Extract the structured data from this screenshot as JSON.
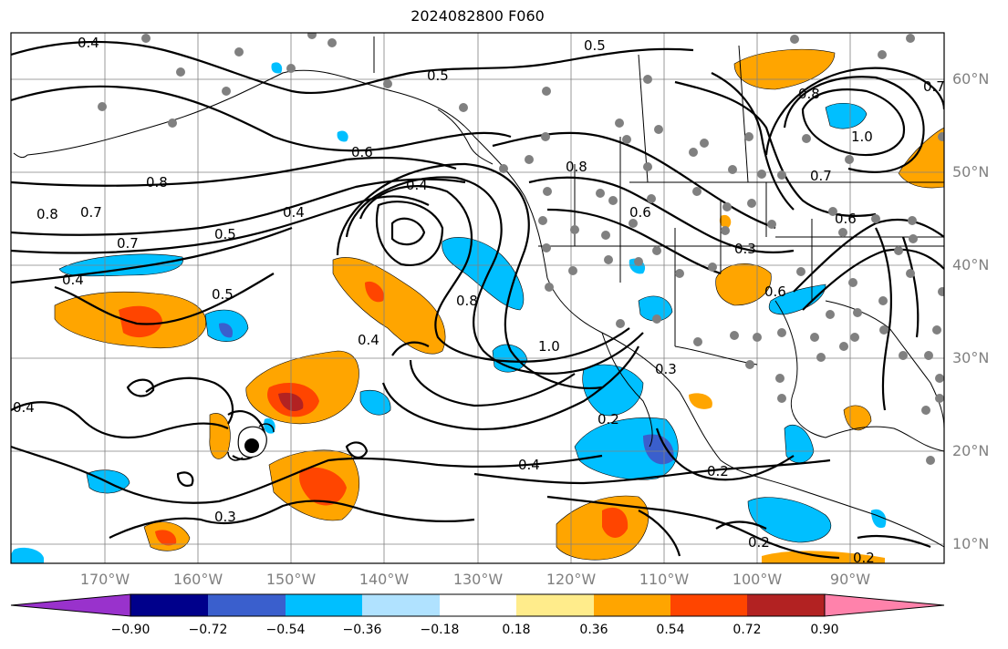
{
  "title": "2024082800 F060",
  "lat_labels": [
    "60°N",
    "50°N",
    "40°N",
    "30°N",
    "20°N",
    "10°N"
  ],
  "lon_labels": [
    "170°W",
    "160°W",
    "150°W",
    "140°W",
    "130°W",
    "120°W",
    "110°W",
    "100°W",
    "90°W"
  ],
  "colorbar": {
    "ticks": [
      "−0.90",
      "−0.72",
      "−0.54",
      "−0.36",
      "−0.18",
      "0.18",
      "0.36",
      "0.54",
      "0.72",
      "0.90"
    ],
    "colors": [
      "#9932cc",
      "#00008b",
      "#3a5fcd",
      "#00bfff",
      "#b0e2ff",
      "#ffffff",
      "#ffec8b",
      "#ffa500",
      "#ff4500",
      "#b22222",
      "#ff82ab"
    ]
  },
  "contour_labels": [
    "0.4",
    "0.5",
    "0.6",
    "0.8",
    "0.7",
    "0.4",
    "0.5",
    "0.4",
    "0.8",
    "0.6",
    "0.4",
    "0.5",
    "0.7",
    "1.0",
    "0.8",
    "0.4",
    "0.3",
    "0.4",
    "0.2",
    "0.2",
    "0.3",
    "0.6",
    "0.7",
    "1.0",
    "0.8",
    "0.7",
    "0.8",
    "0.6",
    "0.2",
    "0.2",
    "0.3",
    "0.5",
    "0.4"
  ],
  "storm_marker": "tropical-cyclone-icon",
  "colors": {
    "land_border": "#000000",
    "grid": "#808080",
    "station": "#808080"
  }
}
